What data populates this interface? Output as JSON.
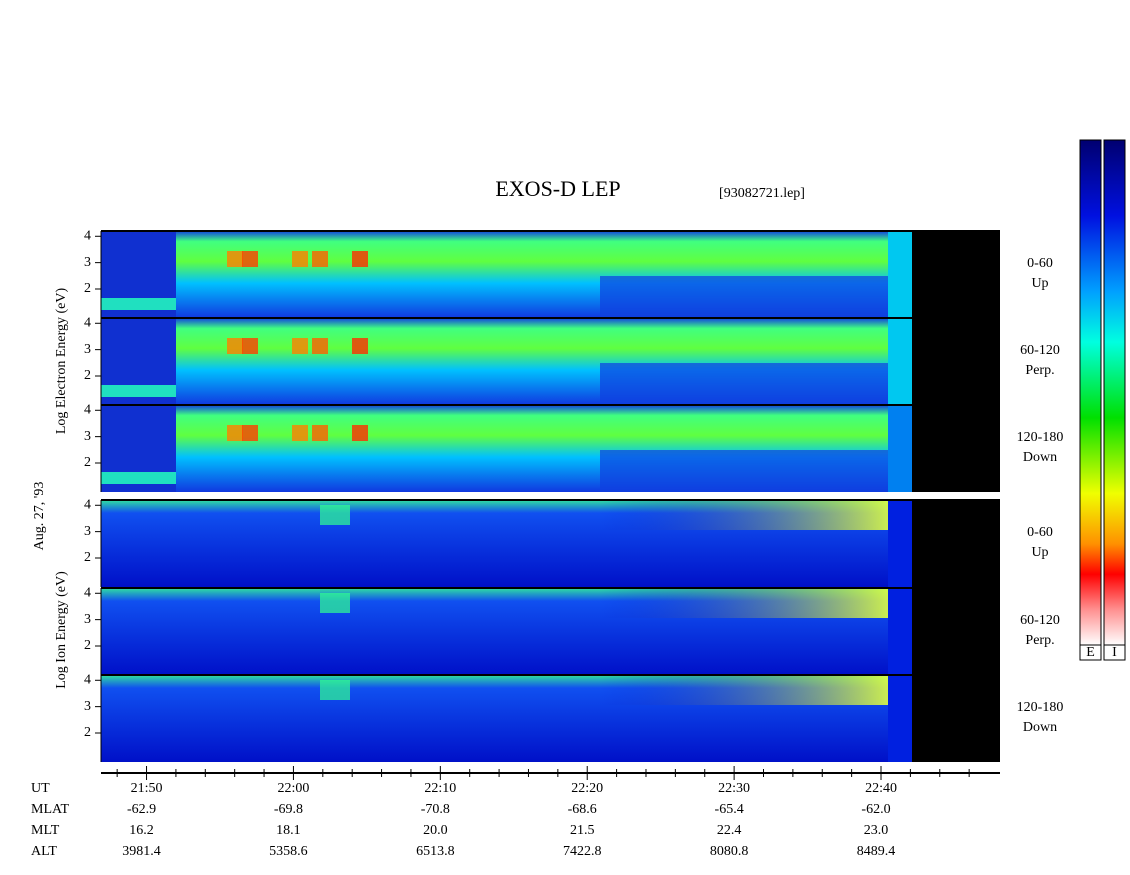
{
  "chart_data": {
    "type": "spectrogram",
    "title": "EXOS-D LEP",
    "subtitle": "[93082721.lep]",
    "date_label": "Aug. 27, '93",
    "electron_axis_label": "Log Electron Energy (eV)",
    "ion_axis_label": "Log Ion Energy (eV)",
    "panels": [
      {
        "label": [
          "0-60",
          "Up"
        ]
      },
      {
        "label": [
          "60-120",
          "Perp."
        ]
      },
      {
        "label": [
          "120-180",
          "Down"
        ]
      },
      {
        "label": [
          "0-60",
          "Up"
        ]
      },
      {
        "label": [
          "60-120",
          "Perp."
        ]
      },
      {
        "label": [
          "120-180",
          "Down"
        ]
      }
    ],
    "ylim": [
      0.9,
      4.2
    ],
    "yticks": [
      2,
      3,
      4
    ],
    "xlim": [
      1306.9,
      1368.1
    ],
    "xticks": [
      {
        "value": 1310,
        "label": "21:50"
      },
      {
        "value": 1320,
        "label": "22:00"
      },
      {
        "value": 1330,
        "label": "22:10"
      },
      {
        "value": 1340,
        "label": "22:20"
      },
      {
        "value": 1350,
        "label": "22:30"
      },
      {
        "value": 1360,
        "label": "22:40"
      }
    ],
    "xminor_ticks": [
      1308,
      1312,
      1314,
      1316,
      1318,
      1322,
      1324,
      1326,
      1328,
      1332,
      1334,
      1336,
      1338,
      1342,
      1344,
      1346,
      1348,
      1352,
      1354,
      1356,
      1358,
      1362,
      1364,
      1366
    ],
    "orbit_rows": [
      {
        "name": "UT"
      },
      {
        "name": "MLAT",
        "values": [
          "-62.9",
          "-69.8",
          "-70.8",
          "-68.6",
          "-65.4",
          "-62.0"
        ]
      },
      {
        "name": "MLT",
        "values": [
          "16.2",
          "18.1",
          "20.0",
          "21.5",
          "22.4",
          "23.0"
        ]
      },
      {
        "name": "ALT",
        "values": [
          "3981.4",
          "5358.6",
          "6513.8",
          "7422.8",
          "8080.8",
          "8489.4"
        ]
      }
    ],
    "colorbars": [
      "E",
      "I"
    ]
  }
}
